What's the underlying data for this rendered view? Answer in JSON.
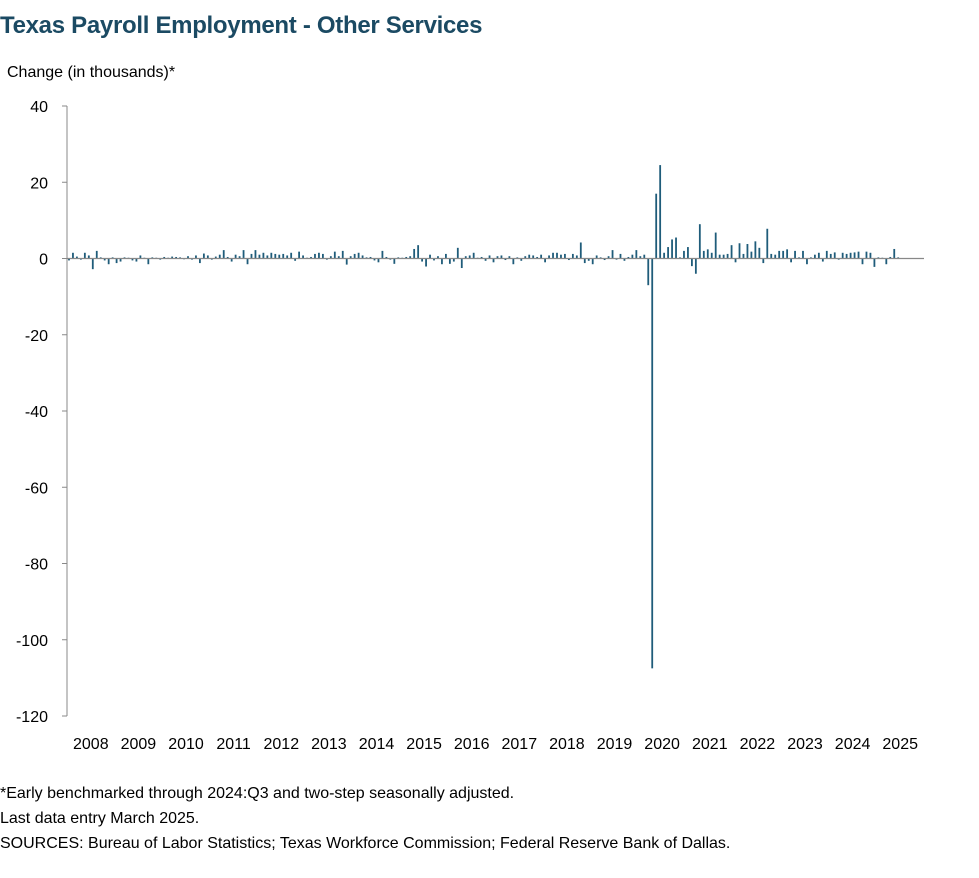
{
  "chart_data": {
    "type": "bar",
    "title": "Texas Payroll Employment - Other Services",
    "ylabel": "Change (in thousands)*",
    "xlabel": "",
    "ylim": [
      -120,
      40
    ],
    "yticks": [
      40,
      20,
      0,
      -20,
      -40,
      -60,
      -80,
      -100,
      -120
    ],
    "xtick_labels": [
      "2008",
      "2009",
      "2010",
      "2011",
      "2012",
      "2013",
      "2014",
      "2015",
      "2016",
      "2017",
      "2018",
      "2019",
      "2020",
      "2021",
      "2022",
      "2023",
      "2024",
      "2025"
    ],
    "x_start": "2008-01",
    "x_end": "2025-03",
    "grid": false,
    "legend": "none",
    "bar_color": "#1f5c7a",
    "values": [
      -0.5,
      1.5,
      0.5,
      -0.3,
      1.5,
      0.8,
      -2.8,
      2.0,
      0.3,
      -0.5,
      -1.5,
      0.3,
      -1.2,
      -0.8,
      0.3,
      0.2,
      -0.5,
      -0.8,
      0.8,
      0.2,
      -1.5,
      0.3,
      0.2,
      -0.3,
      0.4,
      0.2,
      0.5,
      0.4,
      0.3,
      -0.2,
      0.6,
      -0.3,
      0.8,
      -1.2,
      1.3,
      0.8,
      -0.3,
      0.5,
      1.0,
      2.2,
      0.4,
      -0.8,
      1.0,
      0.6,
      2.2,
      -1.5,
      1.2,
      2.2,
      1.0,
      1.5,
      0.8,
      1.5,
      1.2,
      1.0,
      1.2,
      0.8,
      1.5,
      -0.6,
      1.8,
      0.8,
      0.2,
      0.4,
      1.2,
      1.5,
      1.2,
      -0.3,
      0.6,
      1.8,
      0.6,
      2.0,
      -1.6,
      0.6,
      1.2,
      1.5,
      0.8,
      0.3,
      0.4,
      -0.5,
      -1.0,
      2.0,
      0.4,
      -0.3,
      -1.4,
      0.3,
      0.2,
      0.4,
      0.6,
      2.5,
      3.5,
      -0.8,
      -2.1,
      1.0,
      -0.5,
      0.6,
      -1.5,
      1.2,
      -1.4,
      -0.8,
      2.8,
      -2.5,
      0.6,
      0.8,
      1.5,
      0.2,
      0.4,
      -0.6,
      0.8,
      -1.0,
      0.6,
      0.8,
      -0.4,
      0.6,
      -1.5,
      0.3,
      -0.6,
      0.6,
      1.0,
      0.8,
      0.4,
      1.0,
      -1.0,
      0.8,
      1.5,
      1.5,
      1.0,
      1.2,
      -0.4,
      1.2,
      0.8,
      4.2,
      -1.2,
      -0.6,
      -1.5,
      0.8,
      0.3,
      -0.4,
      0.6,
      2.2,
      -0.3,
      1.2,
      -0.6,
      0.4,
      1.0,
      2.2,
      0.6,
      1.0,
      -7.0,
      -107.5,
      17.0,
      24.5,
      1.5,
      3.0,
      5.0,
      5.5,
      0.3,
      2.0,
      3.0,
      -2.0,
      -4.0,
      9.0,
      2.0,
      2.4,
      1.5,
      6.8,
      1.0,
      1.0,
      1.2,
      3.5,
      -1.0,
      4.0,
      1.2,
      3.8,
      1.8,
      4.5,
      2.8,
      -1.2,
      7.8,
      1.2,
      1.0,
      2.0,
      2.0,
      2.4,
      -1.0,
      2.0,
      0.3,
      2.0,
      -1.5,
      0.3,
      1.0,
      1.5,
      -0.8,
      2.0,
      1.2,
      1.6,
      -0.3,
      1.5,
      1.2,
      1.5,
      1.6,
      1.8,
      -1.5,
      1.8,
      1.5,
      -2.2,
      0.3,
      0.2,
      -1.5,
      0.4,
      2.5,
      0.3
    ]
  },
  "footnotes": [
    "*Early benchmarked through 2024:Q3 and two-step seasonally adjusted.",
    "Last data entry March 2025.",
    "SOURCES:  Bureau of Labor Statistics; Texas Workforce Commission;  Federal Reserve Bank of Dallas."
  ]
}
